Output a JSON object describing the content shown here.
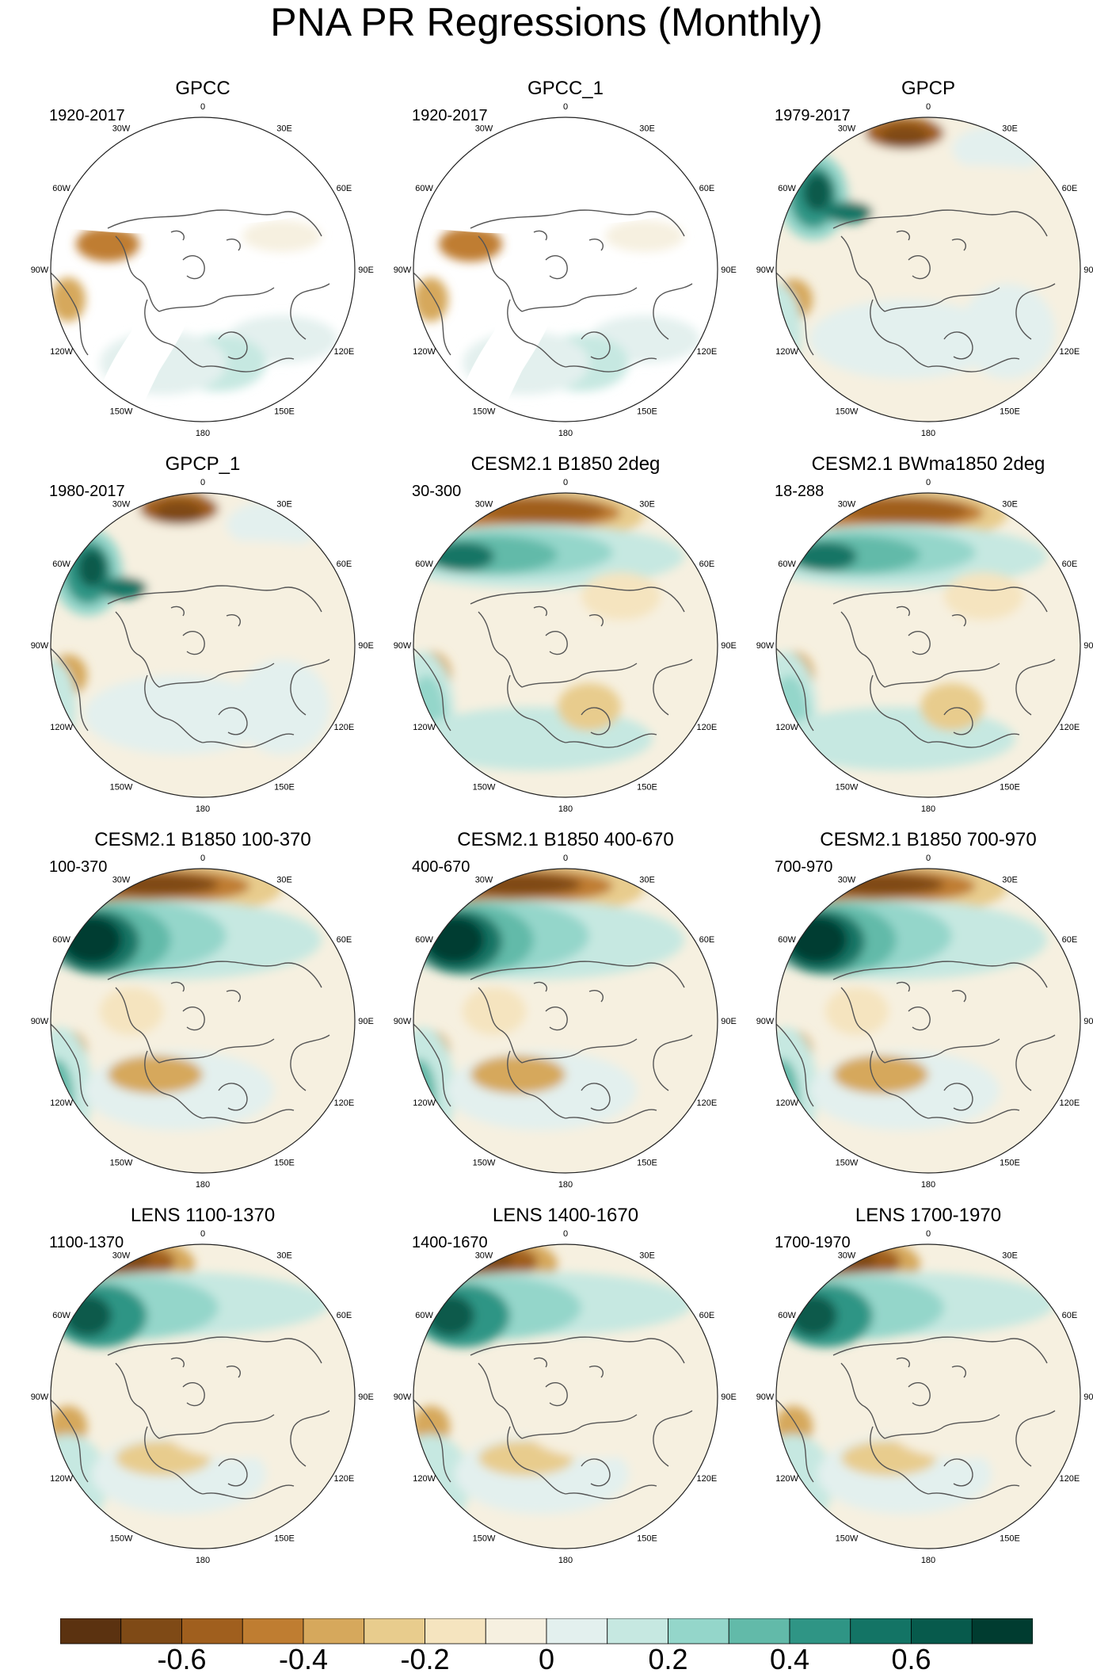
{
  "title": "PNA PR Regressions (Monthly)",
  "lon_labels": [
    "180",
    "150E",
    "120E",
    "90E",
    "60E",
    "30E",
    "0",
    "30W",
    "60W",
    "90W",
    "120W",
    "150W"
  ],
  "panels": [
    {
      "title": "GPCC",
      "period": "1920-2017",
      "pattern": "obs_land"
    },
    {
      "title": "GPCC_1",
      "period": "1920-2017",
      "pattern": "obs_land"
    },
    {
      "title": "GPCP",
      "period": "1979-2017",
      "pattern": "obs_full"
    },
    {
      "title": "GPCP_1",
      "period": "1980-2017",
      "pattern": "obs_full"
    },
    {
      "title": "CESM2.1 B1850 2deg",
      "period": "30-300",
      "pattern": "model"
    },
    {
      "title": "CESM2.1 BWma1850 2deg",
      "period": "18-288",
      "pattern": "model"
    },
    {
      "title": "CESM2.1 B1850 100-370",
      "period": "100-370",
      "pattern": "model_strong"
    },
    {
      "title": "CESM2.1 B1850 400-670",
      "period": "400-670",
      "pattern": "model_strong"
    },
    {
      "title": "CESM2.1 B1850 700-970",
      "period": "700-970",
      "pattern": "model_strong"
    },
    {
      "title": "LENS 1100-1370",
      "period": "1100-1370",
      "pattern": "lens"
    },
    {
      "title": "LENS 1400-1670",
      "period": "1400-1670",
      "pattern": "lens"
    },
    {
      "title": "LENS 1700-1970",
      "period": "1700-1970",
      "pattern": "lens"
    }
  ],
  "colorbar": {
    "colors": [
      "#5b3210",
      "#7f4a16",
      "#a05f1e",
      "#bf7d31",
      "#d6a85c",
      "#e8cc8d",
      "#f5e4bf",
      "#f6f0e0",
      "#e3f0ee",
      "#c6e8e1",
      "#94d6ca",
      "#62baa9",
      "#2f9585",
      "#137465",
      "#075a4c",
      "#003c30"
    ],
    "tick_labels": [
      "-0.6",
      "-0.4",
      "-0.2",
      "0",
      "0.2",
      "0.4",
      "0.6"
    ],
    "tick_values": [
      -0.6,
      -0.4,
      -0.2,
      0,
      0.2,
      0.4,
      0.6
    ],
    "min": -0.8,
    "max": 0.8
  }
}
